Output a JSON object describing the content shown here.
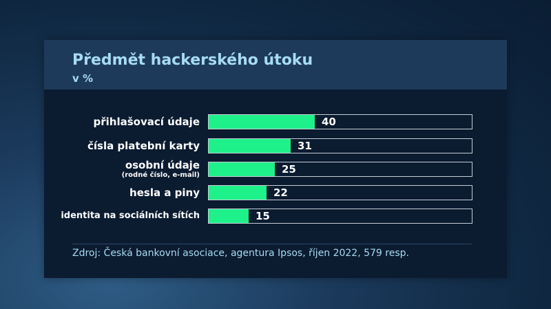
{
  "chart_data": {
    "type": "bar",
    "orientation": "horizontal",
    "title": "Předmět hackerského útoku",
    "subtitle": "v %",
    "categories": [
      {
        "label": "přihlašovací údaje",
        "sublabel": ""
      },
      {
        "label": "čísla platební karty",
        "sublabel": ""
      },
      {
        "label": "osobní údaje",
        "sublabel": "(rodné číslo, e-mail)"
      },
      {
        "label": "hesla a piny",
        "sublabel": ""
      },
      {
        "label": "identita na sociálních sítích",
        "sublabel": ""
      }
    ],
    "values": [
      40,
      31,
      25,
      22,
      15
    ],
    "xlim": [
      0,
      100
    ],
    "grid": false,
    "bar_color": "#1ef08a",
    "title_color": "#a7dcf3"
  },
  "source": "Zdroj: Česká bankovní asociace, agentura Ipsos, říjen 2022, 579 resp."
}
